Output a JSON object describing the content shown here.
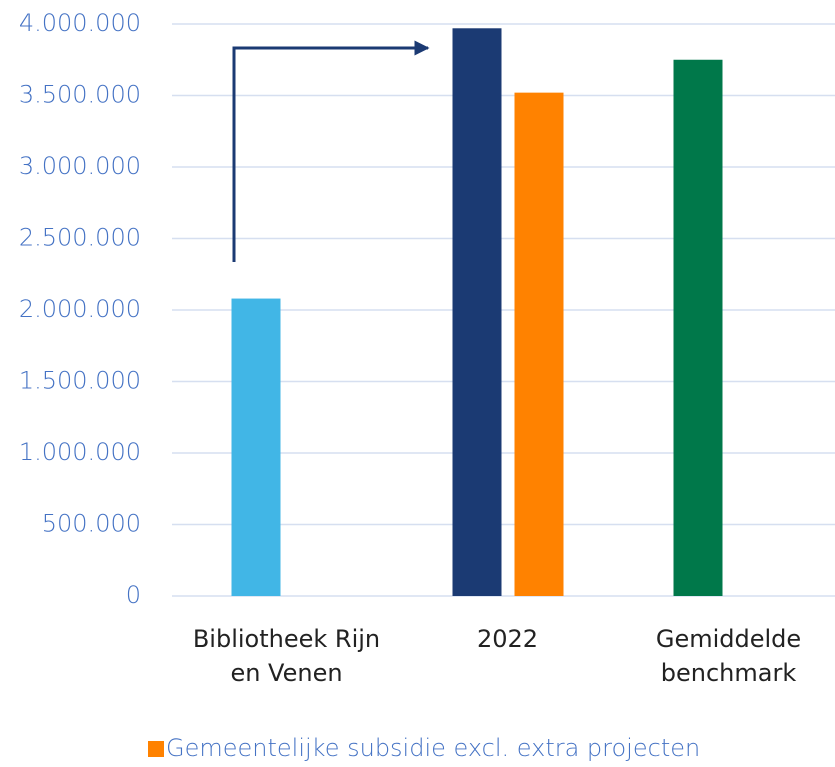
{
  "chart_data": {
    "type": "bar",
    "categories": [
      "Bibliotheek Rijn en Venen",
      "2022",
      "Gemiddelde benchmark"
    ],
    "series": [
      {
        "colors": [
          "#41b6e6",
          "#1b3a73",
          "#00784a"
        ],
        "values": [
          2080000,
          3970000,
          3750000
        ]
      },
      {
        "name": "Gemeentelijke subsidie excl. extra projecten",
        "color": "#ff8200",
        "values": [
          null,
          3520000,
          null
        ]
      }
    ],
    "ylim": [
      0,
      4000000
    ],
    "yticks": [
      0,
      {
        "value": 500000,
        "label": "500.000"
      },
      {
        "value": 1000000,
        "label": "1.000.000"
      },
      {
        "value": 1500000,
        "label": "1.500.000"
      },
      {
        "value": 2000000,
        "label": "2.000.000"
      },
      {
        "value": 2500000,
        "label": "2.500.000"
      },
      {
        "value": 3000000,
        "label": "3.000.000"
      },
      {
        "value": 3500000,
        "label": "3.500.000"
      },
      {
        "value": 4000000,
        "label": "4.000.000"
      }
    ],
    "grid": true,
    "legend": "bottom"
  }
}
